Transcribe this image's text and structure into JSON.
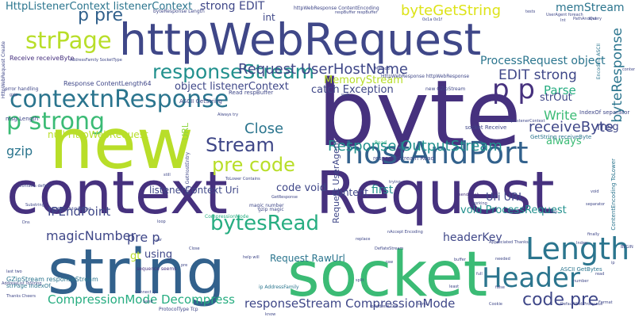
{
  "palette": {
    "background": "#ffffff",
    "dark_purple": "#46317e",
    "indigo": "#3f4788",
    "blue": "#32618c",
    "teal_blue": "#2b758e",
    "teal": "#21908d",
    "green_teal": "#27ad81",
    "green": "#3bbb75",
    "lime": "#8fd744",
    "yellow_green": "#b8de29",
    "yellow": "#dde318"
  },
  "words": [
    {
      "text": "context",
      "color": "#46317e"
    },
    {
      "text": "Request",
      "color": "#46317e"
    },
    {
      "text": "byte",
      "color": "#46317e"
    },
    {
      "text": "httpWebRequest",
      "color": "#3f4788"
    },
    {
      "text": "new",
      "color": "#b8de29"
    },
    {
      "text": "string",
      "color": "#32618c"
    },
    {
      "text": "socket",
      "color": "#3bbb75"
    },
    {
      "text": "responseStream",
      "color": "#21908d"
    },
    {
      "text": "contextnResponse",
      "color": "#2b758e"
    },
    {
      "text": "p strong",
      "color": "#3bbb75"
    },
    {
      "text": "hostAndPort",
      "color": "#32618c"
    },
    {
      "text": "Stream",
      "color": "#3f4788"
    },
    {
      "text": "pre code",
      "color": "#b8de29"
    },
    {
      "text": "bytesRead",
      "color": "#27ad81"
    },
    {
      "text": "Length",
      "color": "#2b758e"
    },
    {
      "text": "Header",
      "color": "#2b758e"
    },
    {
      "text": "strPage",
      "color": "#b8de29"
    },
    {
      "text": "p pre",
      "color": "#32618c"
    },
    {
      "text": "p p",
      "color": "#46317e"
    },
    {
      "text": "Request UserHostName",
      "color": "#3f4788"
    },
    {
      "text": "Response OutputStream",
      "color": "#21908d"
    },
    {
      "text": "CompressionMode Decompress",
      "color": "#27ad81"
    },
    {
      "text": "responseStream CompressionMode",
      "color": "#3f4788"
    },
    {
      "text": "byteGetString",
      "color": "#dde318"
    },
    {
      "text": "receiveByte",
      "color": "#3f4788"
    },
    {
      "text": "magicNumber",
      "color": "#3f4788"
    },
    {
      "text": "code pre",
      "color": "#3f4788"
    },
    {
      "text": "Close",
      "color": "#2b758e"
    },
    {
      "text": "Write",
      "color": "#3bbb75"
    },
    {
      "text": "EDIT strong",
      "color": "#3f4788"
    },
    {
      "text": "IPEndPoint",
      "color": "#3f4788"
    },
    {
      "text": "headerKey",
      "color": "#3f4788"
    },
    {
      "text": "pre p",
      "color": "#3f4788"
    },
    {
      "text": "Parse",
      "color": "#27ad81"
    },
    {
      "text": "memStream",
      "color": "#2b758e"
    },
    {
      "text": "ProcessRequest object",
      "color": "#2b758e"
    },
    {
      "text": "byteResponse",
      "color": "#2b758e"
    },
    {
      "text": "HttpListenerContext listenerContext",
      "color": "#2b758e"
    },
    {
      "text": "strong EDIT",
      "color": "#3f4788"
    },
    {
      "text": "catch Exception",
      "color": "#3f4788"
    },
    {
      "text": "object listenerContext",
      "color": "#3f4788"
    },
    {
      "text": "MemoryStream",
      "color": "#b8de29"
    },
    {
      "text": "void ProcessRequest",
      "color": "#21908d"
    },
    {
      "text": "listenerContext Uri",
      "color": "#3f4788"
    },
    {
      "text": "code void",
      "color": "#3f4788"
    },
    {
      "text": "Uri URL",
      "color": "#3f4788"
    },
    {
      "text": "gzip",
      "color": "#2b758e"
    },
    {
      "text": "always",
      "color": "#3bbb75"
    },
    {
      "text": "msg",
      "color": "#3f4788"
    },
    {
      "text": "content",
      "color": "#3f4788"
    },
    {
      "text": "first",
      "color": "#21908d"
    },
    {
      "text": "using",
      "color": "#3f4788"
    },
    {
      "text": "gt",
      "color": "#b8de29"
    },
    {
      "text": "strOut",
      "color": "#3f4788"
    },
    {
      "text": "int",
      "color": "#3f4788"
    },
    {
      "text": "Request RawUrl",
      "color": "#2b758e"
    },
    {
      "text": "null HttpWebRequest",
      "color": "#b8de29"
    },
    {
      "text": "Request UserAgent",
      "color": "#3f4788"
    },
    {
      "text": "URL",
      "color": "#8fd744"
    },
    {
      "text": "GZipStream responseStream",
      "color": "#2b758e"
    },
    {
      "text": "Response ContentLength64",
      "color": "#3f4788"
    },
    {
      "text": "ASCII GetString",
      "color": "#3f4788"
    },
    {
      "text": "ASCII GetBytes",
      "color": "#2b758e"
    },
    {
      "text": "Receive receiveByte",
      "color": "#46317e"
    },
    {
      "text": "GetString receiveByte",
      "color": "#2b758e"
    },
    {
      "text": "responseStream Read",
      "color": "#3f4788"
    },
    {
      "text": "socket Receive",
      "color": "#3f4788"
    },
    {
      "text": "Read respBuffer",
      "color": "#3f4788"
    },
    {
      "text": "msg Length",
      "color": "#3f4788"
    },
    {
      "text": "error handling",
      "color": "#3f4788"
    },
    {
      "text": "strPage IndexOf",
      "color": "#2b758e"
    },
    {
      "text": "ip AddressFamily",
      "color": "#2b758e"
    },
    {
      "text": "magic number",
      "color": "#3f4788"
    },
    {
      "text": "gzip magic",
      "color": "#3f4788"
    },
    {
      "text": "CompressionMode",
      "color": "#27ad81"
    },
    {
      "text": "Read",
      "color": "#27ad81"
    },
    {
      "text": "HttpWebResponse httpWebResponse",
      "color": "#3f4788"
    },
    {
      "text": "httpWebResponse ContentEncoding",
      "color": "#3f4788"
    },
    {
      "text": "byteResponse Length",
      "color": "#3f4788"
    },
    {
      "text": "Thanks Cheers",
      "color": "#3f4788"
    },
    {
      "text": "last two",
      "color": "#3f4788"
    },
    {
      "text": "Connect ip",
      "color": "#3f4788"
    },
    {
      "text": "GetResponse",
      "color": "#3f4788"
    },
    {
      "text": "ToLower Contains",
      "color": "#3f4788"
    },
    {
      "text": "sequence seems",
      "color": "#46317e"
    },
    {
      "text": "Contains deflate",
      "color": "#3f4788"
    },
    {
      "text": "Always try",
      "color": "#3f4788"
    },
    {
      "text": "send back",
      "color": "#46317e"
    },
    {
      "text": "working",
      "color": "#3f4788"
    },
    {
      "text": "nAccept Encoding",
      "color": "#3f4788"
    },
    {
      "text": "Appreciated Thanks",
      "color": "#3f4788"
    },
    {
      "text": "ContentEncoding ToLower",
      "color": "#2b758e"
    },
    {
      "text": "IndexOf separator",
      "color": "#3f4788"
    },
    {
      "text": "DefaultWebProxy null",
      "color": "#3f4788"
    },
    {
      "text": "finally",
      "color": "#3f4788"
    },
    {
      "text": "needed",
      "color": "#3f4788"
    },
    {
      "text": "replace",
      "color": "#3f4788"
    },
    {
      "text": "help will",
      "color": "#3f4788"
    },
    {
      "text": "Substring",
      "color": "#3f4788"
    },
    {
      "text": "separator",
      "color": "#3f4788"
    },
    {
      "text": "Encoding ASCII",
      "color": "#2b758e"
    },
    {
      "text": "new GZipStream",
      "color": "#3f4788"
    },
    {
      "text": "Dns GetHostEntry",
      "color": "#3f4788"
    },
    {
      "text": "ipAddress Dns",
      "color": "#3f4788"
    },
    {
      "text": "Method",
      "color": "#3f4788"
    },
    {
      "text": "BEGIN",
      "color": "#3f4788"
    },
    {
      "text": "Format",
      "color": "#3f4788"
    },
    {
      "text": "split",
      "color": "#3f4788"
    },
    {
      "text": "0x1a 0x1f",
      "color": "#3f4788"
    },
    {
      "text": "respBuffer respBuffer",
      "color": "#3f4788"
    },
    {
      "text": "UserAgent foreach",
      "color": "#3f4788"
    },
    {
      "text": "PathAndQuery",
      "color": "#3f4788"
    },
    {
      "text": "HttpWebRequest Create",
      "color": "#3f4788"
    },
    {
      "text": "AddressFamily SocketType",
      "color": "#3f4788"
    },
    {
      "text": "AddressList ToString",
      "color": "#3f4788"
    },
    {
      "text": "ProtocolType Tcp",
      "color": "#3f4788"
    },
    {
      "text": "ipAddress AddressList",
      "color": "#3f4788"
    },
    {
      "text": "DeflateStream",
      "color": "#3f4788"
    },
    {
      "text": "Send",
      "color": "#3f4788"
    },
    {
      "text": "HttpListenerContext",
      "color": "#3f4788"
    },
    {
      "text": "tests",
      "color": "#3f4788"
    },
    {
      "text": "number",
      "color": "#3f4788"
    },
    {
      "text": "Close",
      "color": "#3f4788"
    },
    {
      "text": "trying",
      "color": "#3f4788"
    },
    {
      "text": "still",
      "color": "#3f4788"
    },
    {
      "text": "least",
      "color": "#3f4788"
    },
    {
      "text": "know",
      "color": "#3f4788"
    },
    {
      "text": "Dns",
      "color": "#3f4788"
    },
    {
      "text": "ip",
      "color": "#3f4788"
    },
    {
      "text": "loop",
      "color": "#3f4788"
    },
    {
      "text": "Index",
      "color": "#3f4788"
    },
    {
      "text": "read",
      "color": "#3f4788"
    },
    {
      "text": "buffer",
      "color": "#3f4788"
    },
    {
      "text": "content",
      "color": "#3f4788"
    },
    {
      "text": "gzip",
      "color": "#3f4788"
    },
    {
      "text": "way",
      "color": "#3f4788"
    },
    {
      "text": "full",
      "color": "#3f4788"
    },
    {
      "text": "end",
      "color": "#3f4788"
    },
    {
      "text": "Int",
      "color": "#3f4788"
    },
    {
      "text": "raw",
      "color": "#3f4788"
    },
    {
      "text": "var",
      "color": "#3f4788"
    },
    {
      "text": "web",
      "color": "#3f4788"
    },
    {
      "text": "void",
      "color": "#3f4788"
    },
    {
      "text": "Cookie",
      "color": "#3f4788"
    },
    {
      "text": "false",
      "color": "#3f4788"
    },
    {
      "text": "send",
      "color": "#3f4788"
    },
    {
      "text": "pre",
      "color": "#3f4788"
    }
  ]
}
